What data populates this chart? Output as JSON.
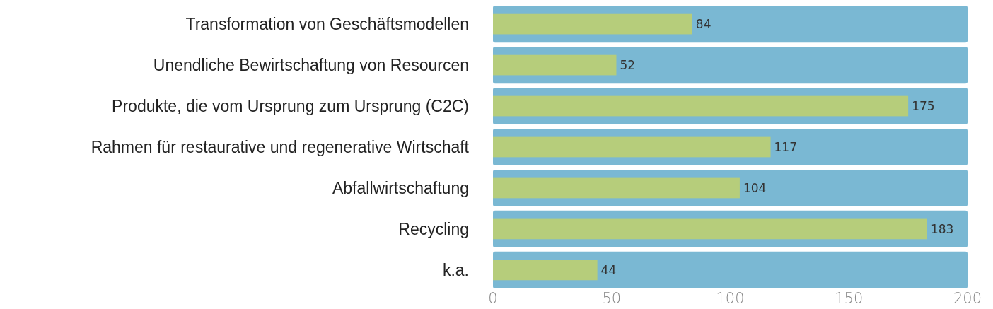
{
  "chart_data": {
    "type": "bar",
    "orientation": "horizontal",
    "categories": [
      "Transformation von Geschäftsmodellen",
      "Unendliche Bewirtschaftung von Resourcen",
      "Produkte, die vom Ursprung zum Ursprung (C2C)",
      "Rahmen für restaurative und regenerative Wirtschaft",
      "Abfallwirtschaftung",
      "Recycling",
      "k.a."
    ],
    "series": [
      {
        "color": "#7ab8d3",
        "values": [
          200,
          200,
          200,
          200,
          200,
          200,
          200
        ]
      },
      {
        "color": "#b6cd7b",
        "values": [
          84,
          52,
          175,
          117,
          104,
          183,
          44
        ],
        "value_labels": [
          "84",
          "52",
          "175",
          "117",
          "104",
          "183",
          "44"
        ]
      }
    ],
    "xlim": [
      0,
      200
    ],
    "xticks": [
      0,
      50,
      100,
      150,
      200
    ],
    "grid": false
  }
}
